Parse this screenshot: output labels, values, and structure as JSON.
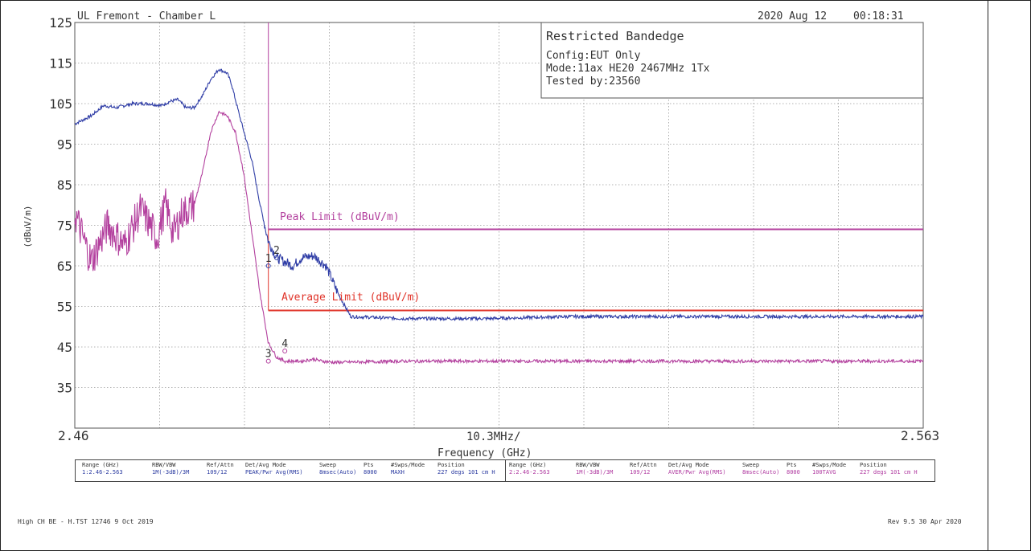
{
  "header": {
    "site": "UL Fremont - Chamber L",
    "date": "2020 Aug 12",
    "time": "00:18:31"
  },
  "infobox": {
    "title": "Restricted Bandedge",
    "config": "Config:EUT Only",
    "mode": "Mode:11ax HE20 2467MHz 1Tx",
    "tested_by": "Tested by:23560"
  },
  "axes": {
    "ylabel": "(dBuV/m)",
    "xlabel": "Frequency (GHz)",
    "x_start_label": "2.46",
    "x_end_label": "2.563",
    "x_center_label": "10.3MHz/",
    "y_tick_labels": [
      "125",
      "115",
      "105",
      "95",
      "85",
      "75",
      "65",
      "55",
      "45",
      "35"
    ]
  },
  "limits": {
    "peak_label": "Peak Limit (dBuV/m)",
    "average_label": "Average Limit (dBuV/m)"
  },
  "markers": [
    "1",
    "2",
    "3",
    "4"
  ],
  "colors": {
    "peak_trace": "#2f3da6",
    "average_trace": "#b3409e",
    "peak_limit": "#b3409e",
    "average_limit": "#e0342a",
    "grid": "#9a9a9a"
  },
  "settings": {
    "headers": [
      "Range (GHz)",
      "RBW/VBW",
      "Ref/Attn",
      "Det/Avg Mode",
      "Sweep",
      "Pts",
      "#Swps/Mode",
      "Position"
    ],
    "trace1": [
      "1:2.46-2.563",
      "1M(-3dB)/3M",
      "109/12",
      "PEAK/Pwr Avg(RMS)",
      "8msec(Auto)",
      "8000",
      "MAXH",
      "227 degs 101 cm H"
    ],
    "trace2": [
      "2:2.46-2.563",
      "1M(-3dB)/3M",
      "109/12",
      "AVER/Pwr Avg(RMS)",
      "8msec(Auto)",
      "8000",
      "100TAVG",
      "227 degs 101 cm H"
    ]
  },
  "footer": {
    "left": "High CH BE - H.TST 12746  9 Oct 2019",
    "right": "Rev 9.5 30 Apr 2020"
  },
  "chart_data": {
    "type": "line",
    "title": "Restricted Bandedge",
    "xlabel": "Frequency (GHz)",
    "ylabel": "(dBuV/m)",
    "xlim": [
      2.46,
      2.563
    ],
    "ylim": [
      25,
      125
    ],
    "x_divisions": 10,
    "y_divisions": 10,
    "grid": true,
    "series": [
      {
        "key": "peak",
        "x": [
          2.46,
          2.462,
          2.4635,
          2.465,
          2.467,
          2.469,
          2.4705,
          2.4715,
          2.4725,
          2.4735,
          2.4745,
          2.4755,
          2.4765,
          2.4775,
          2.4785,
          2.479,
          2.48,
          2.4815,
          2.4825,
          2.4835,
          2.4845,
          2.4855,
          2.4865,
          2.4875,
          2.489,
          2.4905,
          2.492,
          2.4935,
          2.5,
          2.51,
          2.52,
          2.53,
          2.54,
          2.55,
          2.563
        ],
        "y": [
          100,
          102,
          104.5,
          104,
          105,
          105,
          104.5,
          105.5,
          106,
          104,
          104,
          107,
          111,
          113.5,
          112.5,
          110,
          102,
          91,
          80,
          71,
          67,
          66,
          65,
          67,
          67.5,
          65,
          58,
          52.5,
          52,
          52,
          52.5,
          52.5,
          52.5,
          52.5,
          52.5
        ]
      },
      {
        "key": "average",
        "x": [
          2.46,
          2.462,
          2.464,
          2.466,
          2.468,
          2.47,
          2.471,
          2.472,
          2.473,
          2.4745,
          2.4755,
          2.4765,
          2.4775,
          2.4785,
          2.4795,
          2.4805,
          2.4815,
          2.4825,
          2.4835,
          2.4845,
          2.4855,
          2.4875,
          2.489,
          2.49,
          2.4915,
          2.5,
          2.52,
          2.54,
          2.563
        ],
        "y": [
          78,
          66,
          75,
          70,
          79,
          72,
          80,
          73,
          78,
          80,
          88,
          98,
          103,
          102,
          98,
          88,
          73,
          58,
          46,
          42.5,
          41.5,
          41.5,
          42,
          41.5,
          41.2,
          41.5,
          41.5,
          41.5,
          41.5
        ]
      }
    ],
    "limits": [
      {
        "key": "peak_limit",
        "x": [
          2.4835,
          2.563
        ],
        "y": 74
      },
      {
        "key": "average_limit",
        "x": [
          2.4835,
          2.563
        ],
        "y": 54
      }
    ],
    "vertical_line_x": 2.4835,
    "marker_points": [
      {
        "label": "1",
        "x": 2.4835,
        "y": 65
      },
      {
        "label": "2",
        "x": 2.4845,
        "y": 67
      },
      {
        "label": "3",
        "x": 2.4835,
        "y": 41.5
      },
      {
        "label": "4",
        "x": 2.4855,
        "y": 44
      }
    ]
  }
}
